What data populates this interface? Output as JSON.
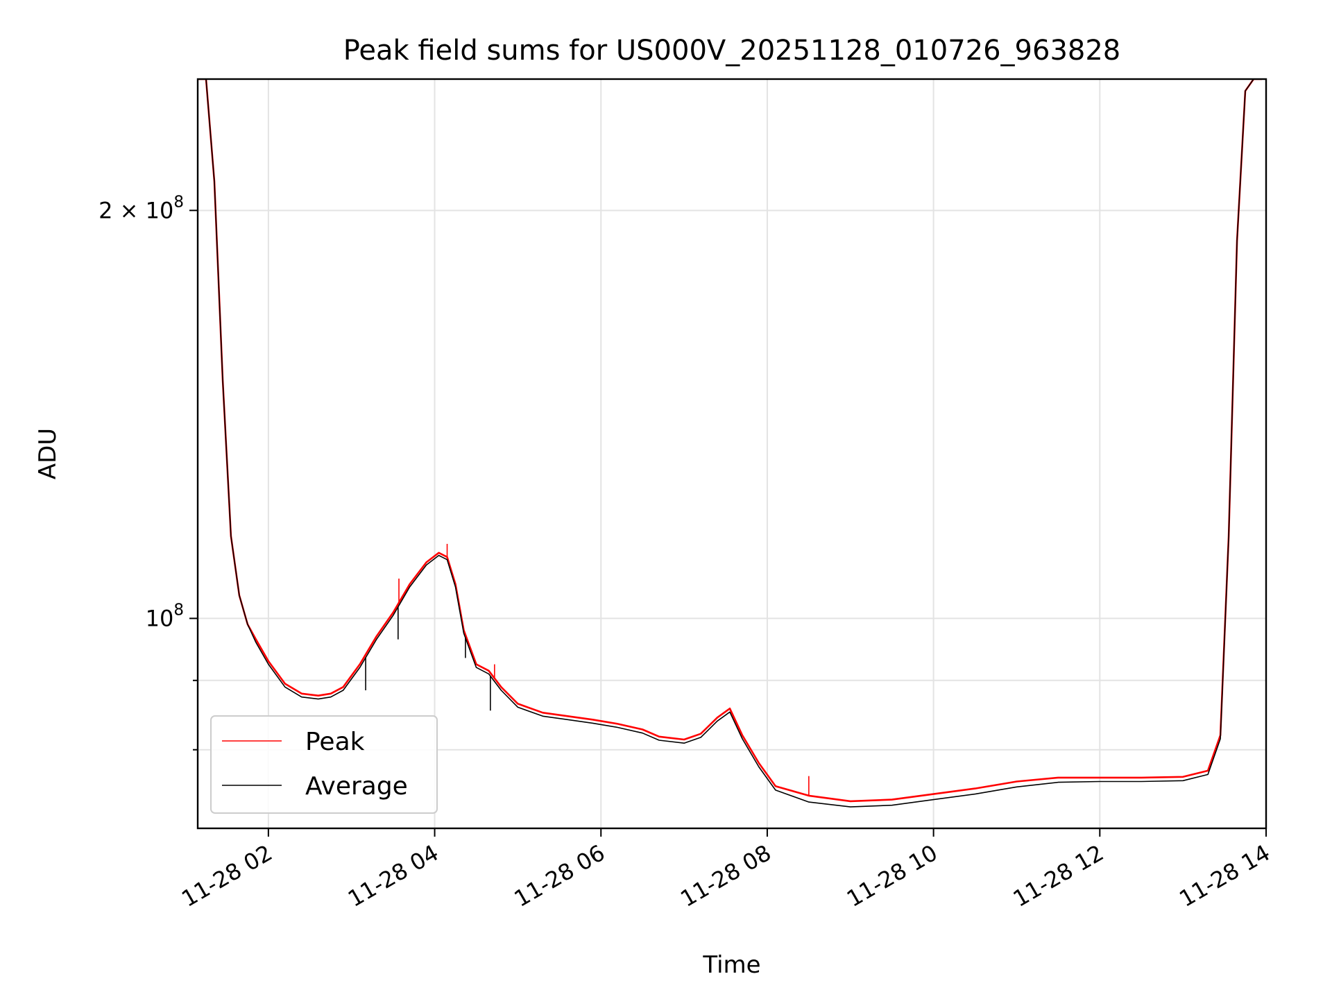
{
  "chart_data": {
    "type": "line",
    "title": "Peak field sums for US000V_20251128_010726_963828",
    "xlabel": "Time",
    "ylabel": "ADU",
    "x_unit": "hours on 2025-11-28",
    "xlim": [
      1.15,
      14.0
    ],
    "ylim": [
      70000000,
      250000000
    ],
    "yscale": "log",
    "grid": true,
    "legend_position": "lower-left",
    "x_ticks": [
      {
        "value": 2,
        "label": "11-28 02"
      },
      {
        "value": 4,
        "label": "11-28 04"
      },
      {
        "value": 6,
        "label": "11-28 06"
      },
      {
        "value": 8,
        "label": "11-28 08"
      },
      {
        "value": 10,
        "label": "11-28 10"
      },
      {
        "value": 12,
        "label": "11-28 12"
      },
      {
        "value": 14,
        "label": "11-28 14"
      }
    ],
    "y_major_ticks": [
      {
        "value": 100000000,
        "base": "10",
        "exp": "8"
      },
      {
        "value": 200000000,
        "mant": "2 × ",
        "base": "10",
        "exp": "8"
      }
    ],
    "y_minor_ticks": [
      80000000,
      90000000
    ],
    "series": [
      {
        "name": "Peak",
        "color": "#ff0000",
        "x": [
          1.15,
          1.25,
          1.35,
          1.45,
          1.55,
          1.65,
          1.75,
          1.85,
          2.0,
          2.2,
          2.4,
          2.6,
          2.75,
          2.9,
          3.1,
          3.3,
          3.5,
          3.7,
          3.9,
          4.05,
          4.15,
          4.25,
          4.35,
          4.5,
          4.65,
          4.8,
          5.0,
          5.3,
          5.6,
          5.9,
          6.2,
          6.5,
          6.7,
          7.0,
          7.2,
          7.4,
          7.55,
          7.7,
          7.9,
          8.1,
          8.5,
          9.0,
          9.5,
          10.0,
          10.5,
          11.0,
          11.5,
          12.0,
          12.5,
          13.0,
          13.3,
          13.45,
          13.55,
          13.65,
          13.75,
          13.85,
          13.95
        ],
        "y": [
          250000000,
          250000000,
          210000000,
          150000000,
          115000000,
          104000000,
          99000000,
          96500000,
          93000000,
          89500000,
          88000000,
          87700000,
          88000000,
          89000000,
          92500000,
          97000000,
          101000000,
          106000000,
          110000000,
          111800000,
          111000000,
          106000000,
          98000000,
          92500000,
          91500000,
          89000000,
          86500000,
          85200000,
          84700000,
          84200000,
          83600000,
          82800000,
          81800000,
          81400000,
          82200000,
          84500000,
          85800000,
          82000000,
          78200000,
          75200000,
          74000000,
          73300000,
          73500000,
          74200000,
          74900000,
          75800000,
          76300000,
          76300000,
          76300000,
          76400000,
          77200000,
          82000000,
          115000000,
          190000000,
          245000000,
          250000000,
          250000000
        ],
        "spikes": [
          {
            "x": 3.57,
            "y": 107000000
          },
          {
            "x": 4.15,
            "y": 113500000
          },
          {
            "x": 4.72,
            "y": 92500000
          },
          {
            "x": 8.5,
            "y": 76500000
          }
        ]
      },
      {
        "name": "Average",
        "color": "#000000",
        "x": [
          1.15,
          1.25,
          1.35,
          1.45,
          1.55,
          1.65,
          1.75,
          1.85,
          2.0,
          2.2,
          2.4,
          2.6,
          2.75,
          2.9,
          3.1,
          3.3,
          3.5,
          3.7,
          3.9,
          4.05,
          4.15,
          4.25,
          4.35,
          4.5,
          4.65,
          4.8,
          5.0,
          5.3,
          5.6,
          5.9,
          6.2,
          6.5,
          6.7,
          7.0,
          7.2,
          7.4,
          7.55,
          7.7,
          7.9,
          8.1,
          8.5,
          9.0,
          9.5,
          10.0,
          10.5,
          11.0,
          11.5,
          12.0,
          12.5,
          13.0,
          13.3,
          13.45,
          13.55,
          13.65,
          13.75,
          13.85,
          13.95
        ],
        "y": [
          250000000,
          250000000,
          210000000,
          150000000,
          115000000,
          104000000,
          99000000,
          96000000,
          92500000,
          89000000,
          87500000,
          87200000,
          87500000,
          88500000,
          92000000,
          96500000,
          100500000,
          105500000,
          109500000,
          111300000,
          110500000,
          105500000,
          97500000,
          92000000,
          91000000,
          88500000,
          86000000,
          84700000,
          84200000,
          83700000,
          83100000,
          82300000,
          81300000,
          80900000,
          81700000,
          84000000,
          85300000,
          81500000,
          77700000,
          74700000,
          73200000,
          72600000,
          72800000,
          73500000,
          74200000,
          75100000,
          75700000,
          75800000,
          75800000,
          75900000,
          76700000,
          81500000,
          115000000,
          190000000,
          245000000,
          250000000,
          250000000
        ],
        "spikes": [
          {
            "x": 3.17,
            "y": 88500000
          },
          {
            "x": 3.56,
            "y": 96500000
          },
          {
            "x": 4.37,
            "y": 93500000
          },
          {
            "x": 4.67,
            "y": 85500000
          }
        ]
      }
    ]
  }
}
